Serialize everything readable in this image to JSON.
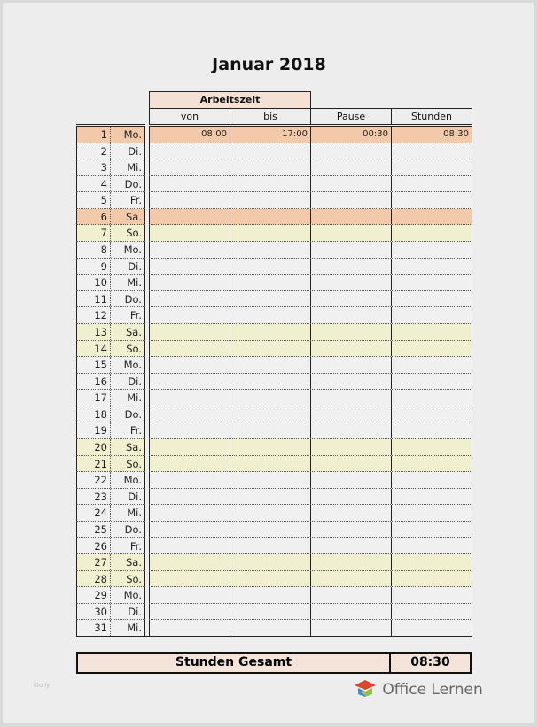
{
  "title": "Januar 2018",
  "header": {
    "group": "Arbeitszeit",
    "von": "von",
    "bis": "bis",
    "pause": "Pause",
    "stunden": "Stunden"
  },
  "colors": {
    "normal": "#f0f0f0",
    "holiday": "#f2caa9",
    "weekend": "#f0efcf",
    "header_group": "#f5e1d3"
  },
  "rows": [
    {
      "day": "1",
      "name": "Mo.",
      "type": "holiday",
      "von": "08:00",
      "bis": "17:00",
      "pause": "00:30",
      "stunden": "08:30"
    },
    {
      "day": "2",
      "name": "Di.",
      "type": "normal"
    },
    {
      "day": "3",
      "name": "Mi.",
      "type": "normal"
    },
    {
      "day": "4",
      "name": "Do.",
      "type": "normal"
    },
    {
      "day": "5",
      "name": "Fr.",
      "type": "normal"
    },
    {
      "day": "6",
      "name": "Sa.",
      "type": "holiday"
    },
    {
      "day": "7",
      "name": "So.",
      "type": "weekend"
    },
    {
      "day": "8",
      "name": "Mo.",
      "type": "normal"
    },
    {
      "day": "9",
      "name": "Di.",
      "type": "normal"
    },
    {
      "day": "10",
      "name": "Mi.",
      "type": "normal"
    },
    {
      "day": "11",
      "name": "Do.",
      "type": "normal"
    },
    {
      "day": "12",
      "name": "Fr.",
      "type": "normal"
    },
    {
      "day": "13",
      "name": "Sa.",
      "type": "weekend"
    },
    {
      "day": "14",
      "name": "So.",
      "type": "weekend"
    },
    {
      "day": "15",
      "name": "Mo.",
      "type": "normal"
    },
    {
      "day": "16",
      "name": "Di.",
      "type": "normal"
    },
    {
      "day": "17",
      "name": "Mi.",
      "type": "normal"
    },
    {
      "day": "18",
      "name": "Do.",
      "type": "normal"
    },
    {
      "day": "19",
      "name": "Fr.",
      "type": "normal"
    },
    {
      "day": "20",
      "name": "Sa.",
      "type": "weekend"
    },
    {
      "day": "21",
      "name": "So.",
      "type": "weekend"
    },
    {
      "day": "22",
      "name": "Mo.",
      "type": "normal"
    },
    {
      "day": "23",
      "name": "Di.",
      "type": "normal"
    },
    {
      "day": "24",
      "name": "Mi.",
      "type": "normal"
    },
    {
      "day": "25",
      "name": "Do.",
      "type": "normal"
    },
    {
      "day": "26",
      "name": "Fr.",
      "type": "normal"
    },
    {
      "day": "27",
      "name": "Sa.",
      "type": "weekend"
    },
    {
      "day": "28",
      "name": "So.",
      "type": "weekend"
    },
    {
      "day": "29",
      "name": "Mo.",
      "type": "normal"
    },
    {
      "day": "30",
      "name": "Di.",
      "type": "normal"
    },
    {
      "day": "31",
      "name": "Mi.",
      "type": "normal"
    }
  ],
  "total": {
    "label": "Stunden Gesamt",
    "value": "08:30"
  },
  "logo": {
    "text": "Office Lernen"
  },
  "watermark": "lilo.ly"
}
